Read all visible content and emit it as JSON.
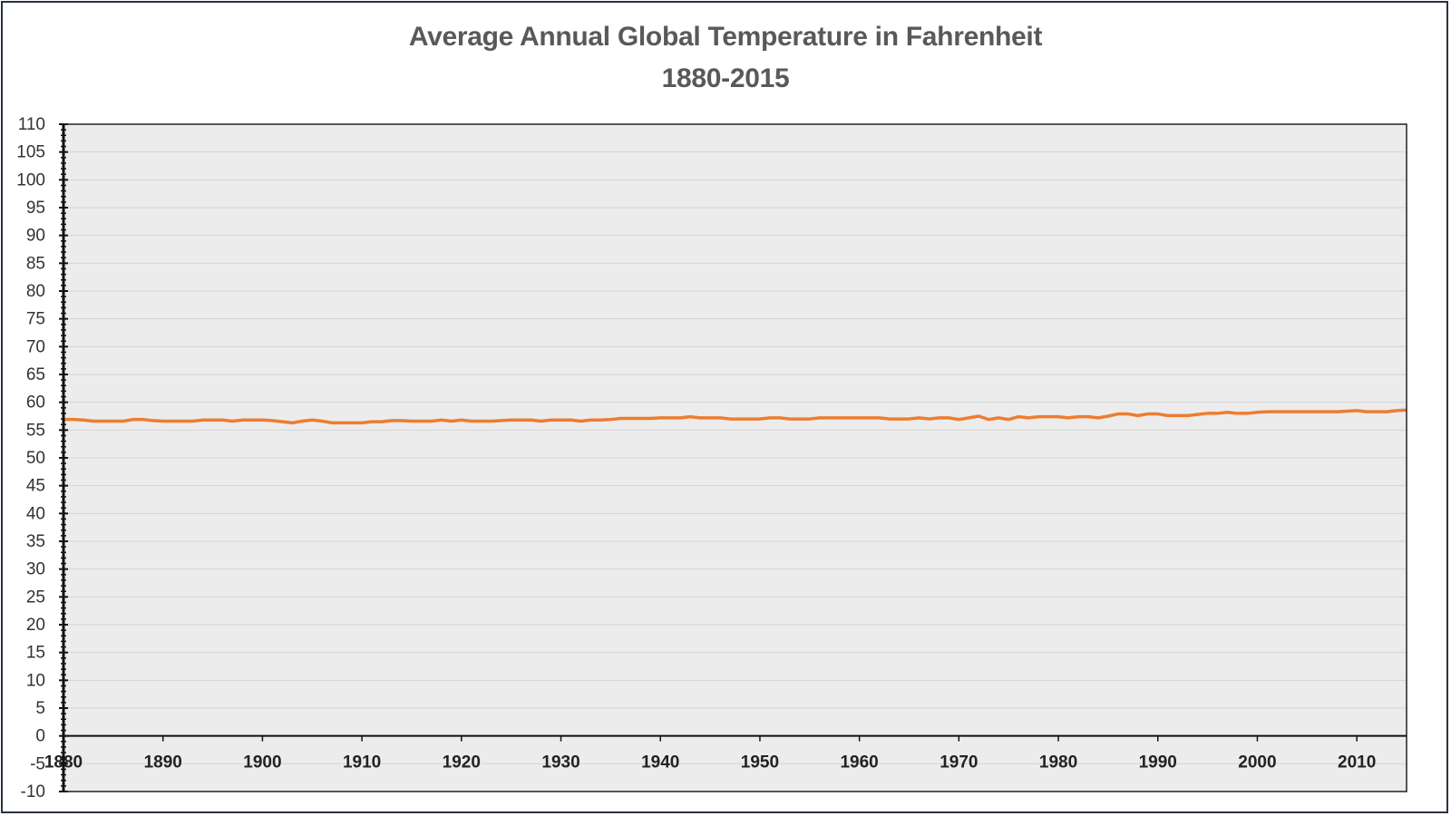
{
  "chart_data": {
    "type": "line",
    "title": "Average Annual Global Temperature in Fahrenheit",
    "subtitle": "1880-2015",
    "xlabel": "",
    "ylabel": "",
    "xlim": [
      1880,
      2015
    ],
    "ylim": [
      -10,
      110
    ],
    "ytick_step": 5,
    "xticks": [
      1880,
      1890,
      1900,
      1910,
      1920,
      1930,
      1940,
      1950,
      1960,
      1970,
      1980,
      1990,
      2000,
      2010
    ],
    "grid": true,
    "legend": "none",
    "series": [
      {
        "color": "#ed7d31",
        "x": [
          1880,
          1881,
          1882,
          1883,
          1884,
          1885,
          1886,
          1887,
          1888,
          1889,
          1890,
          1891,
          1892,
          1893,
          1894,
          1895,
          1896,
          1897,
          1898,
          1899,
          1900,
          1901,
          1902,
          1903,
          1904,
          1905,
          1906,
          1907,
          1908,
          1909,
          1910,
          1911,
          1912,
          1913,
          1914,
          1915,
          1916,
          1917,
          1918,
          1919,
          1920,
          1921,
          1922,
          1923,
          1924,
          1925,
          1926,
          1927,
          1928,
          1929,
          1930,
          1931,
          1932,
          1933,
          1934,
          1935,
          1936,
          1937,
          1938,
          1939,
          1940,
          1941,
          1942,
          1943,
          1944,
          1945,
          1946,
          1947,
          1948,
          1949,
          1950,
          1951,
          1952,
          1953,
          1954,
          1955,
          1956,
          1957,
          1958,
          1959,
          1960,
          1961,
          1962,
          1963,
          1964,
          1965,
          1966,
          1967,
          1968,
          1969,
          1970,
          1971,
          1972,
          1973,
          1974,
          1975,
          1976,
          1977,
          1978,
          1979,
          1980,
          1981,
          1982,
          1983,
          1984,
          1985,
          1986,
          1987,
          1988,
          1989,
          1990,
          1991,
          1992,
          1993,
          1994,
          1995,
          1996,
          1997,
          1998,
          1999,
          2000,
          2001,
          2002,
          2003,
          2004,
          2005,
          2006,
          2007,
          2008,
          2009,
          2010,
          2011,
          2012,
          2013,
          2014,
          2015
        ],
        "values": [
          56.9,
          56.9,
          56.8,
          56.6,
          56.6,
          56.6,
          56.6,
          56.9,
          56.9,
          56.7,
          56.6,
          56.6,
          56.6,
          56.6,
          56.8,
          56.8,
          56.8,
          56.6,
          56.8,
          56.8,
          56.8,
          56.7,
          56.5,
          56.3,
          56.6,
          56.8,
          56.6,
          56.3,
          56.3,
          56.3,
          56.3,
          56.5,
          56.5,
          56.7,
          56.7,
          56.6,
          56.6,
          56.6,
          56.8,
          56.6,
          56.8,
          56.6,
          56.6,
          56.6,
          56.7,
          56.8,
          56.8,
          56.8,
          56.6,
          56.8,
          56.8,
          56.8,
          56.6,
          56.8,
          56.8,
          56.9,
          57.1,
          57.1,
          57.1,
          57.1,
          57.2,
          57.2,
          57.2,
          57.4,
          57.2,
          57.2,
          57.2,
          57.0,
          57.0,
          57.0,
          57.0,
          57.2,
          57.2,
          57.0,
          57.0,
          57.0,
          57.2,
          57.2,
          57.2,
          57.2,
          57.2,
          57.2,
          57.2,
          57.0,
          57.0,
          57.0,
          57.2,
          57.0,
          57.2,
          57.2,
          56.9,
          57.2,
          57.5,
          56.9,
          57.2,
          56.9,
          57.4,
          57.2,
          57.4,
          57.4,
          57.4,
          57.2,
          57.4,
          57.4,
          57.2,
          57.5,
          57.9,
          57.9,
          57.6,
          57.9,
          57.9,
          57.6,
          57.6,
          57.6,
          57.8,
          58.0,
          58.0,
          58.2,
          58.0,
          58.0,
          58.2,
          58.3,
          58.3,
          58.3,
          58.3,
          58.3,
          58.3,
          58.3,
          58.3,
          58.4,
          58.5,
          58.3,
          58.3,
          58.3,
          58.5,
          58.6
        ]
      }
    ]
  }
}
